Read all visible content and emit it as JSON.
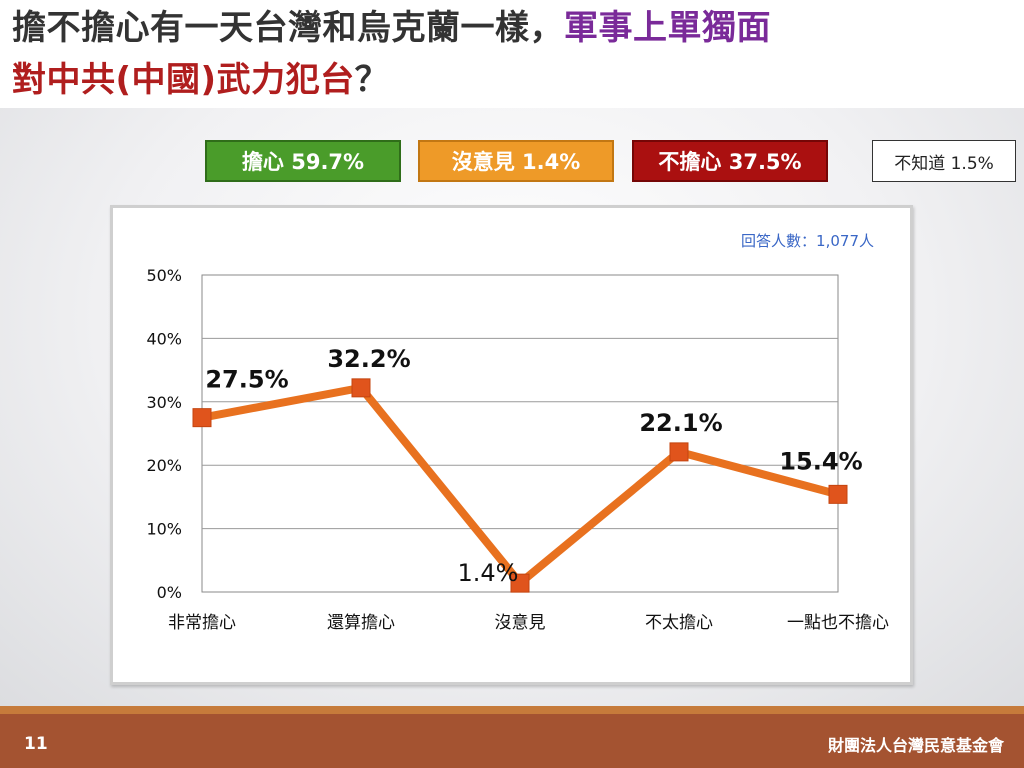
{
  "title": {
    "part1": "擔不擔心有一天台灣和烏克蘭一樣，",
    "part2": "軍事上單獨面",
    "part3": "對中共(中國)武力犯台",
    "part4": "？"
  },
  "summary": {
    "worry": "擔心 59.7%",
    "no_opinion": "沒意見 1.4%",
    "not_worry": "不擔心 37.5%",
    "unknown": "不知道 1.5%"
  },
  "respondents": "回答人數：1,077人",
  "chart_data": {
    "type": "line",
    "categories": [
      "非常擔心",
      "還算擔心",
      "沒意見",
      "不太擔心",
      "一點也不擔心"
    ],
    "values": [
      27.5,
      32.2,
      1.4,
      22.1,
      15.4
    ],
    "labels": [
      "27.5%",
      "32.2%",
      "1.4%",
      "22.1%",
      "15.4%"
    ],
    "ylim": [
      0,
      50
    ],
    "yticks": [
      "0%",
      "10%",
      "20%",
      "30%",
      "40%",
      "50%"
    ],
    "line_color": "#e8711f",
    "marker_color": "#e0541c",
    "grid": true
  },
  "footer": {
    "page": "11",
    "org": "財團法人台灣民意基金會"
  },
  "colors": {
    "worry": "#4a9c2a",
    "no_opinion": "#ee9a28",
    "not_worry": "#aa1010",
    "footer": "#a45331"
  }
}
